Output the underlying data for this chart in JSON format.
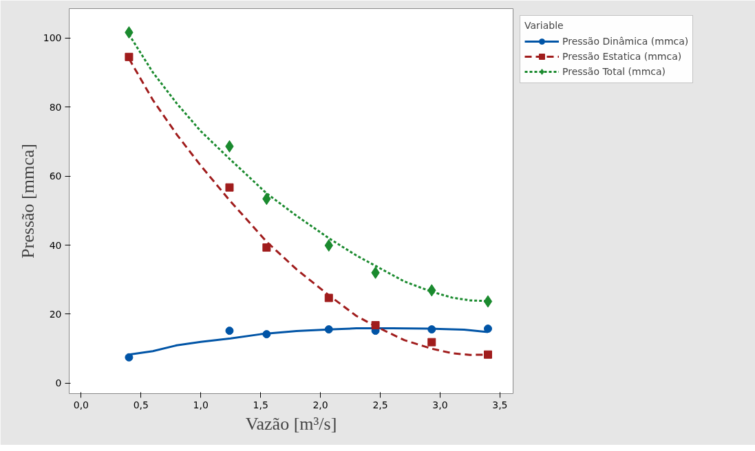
{
  "chart_data": {
    "type": "scatter",
    "xlabel": "Vazão [m³/s]",
    "ylabel": "Pressão [mmca]",
    "legend_title": "Variable",
    "legend": "top right",
    "grid": false,
    "xlim": [
      -0.1,
      3.61
    ],
    "ylim": [
      -3,
      108.5
    ],
    "xticks": [
      {
        "value": 0,
        "label": "0,0"
      },
      {
        "value": 0.5,
        "label": "0,5"
      },
      {
        "value": 1,
        "label": "1,0"
      },
      {
        "value": 1.5,
        "label": "1,5"
      },
      {
        "value": 2,
        "label": "2,0"
      },
      {
        "value": 2.5,
        "label": "2,5"
      },
      {
        "value": 3,
        "label": "3,0"
      },
      {
        "value": 3.5,
        "label": "3,5"
      }
    ],
    "yticks": [
      0,
      20,
      40,
      60,
      80,
      100
    ],
    "x": [
      0.4,
      1.24,
      1.55,
      2.07,
      2.46,
      2.93,
      3.4
    ],
    "series": [
      {
        "name": "Pressão Dinâmica (mmca)",
        "type": "scatter",
        "marker": "circle",
        "color": "#0054a6",
        "values": [
          7.5,
          15.2,
          14.2,
          15.6,
          15.2,
          15.6,
          15.8
        ]
      },
      {
        "type": "line",
        "line_style": "solid",
        "color": "#0054a6",
        "x": [
          0.4,
          0.6,
          0.8,
          1.0,
          1.25,
          1.5,
          1.8,
          2.1,
          2.3,
          2.6,
          2.9,
          3.2,
          3.4
        ],
        "values": [
          8.3,
          9.3,
          11,
          12,
          13,
          14.2,
          15.1,
          15.6,
          15.9,
          15.9,
          15.8,
          15.5,
          14.8
        ]
      },
      {
        "name": "Pressão Estatica (mmca)",
        "type": "scatter",
        "marker": "square",
        "color": "#a01c1c",
        "values": [
          94.5,
          56.7,
          39.3,
          24.7,
          16.8,
          11.9,
          8.3
        ]
      },
      {
        "type": "line",
        "line_style": "dashed",
        "color": "#a01c1c",
        "x": [
          0.4,
          0.6,
          0.8,
          1.0,
          1.24,
          1.55,
          1.8,
          2.07,
          2.3,
          2.46,
          2.7,
          2.93,
          3.1,
          3.25,
          3.4
        ],
        "values": [
          94,
          82,
          72,
          63,
          53,
          41,
          33,
          25.5,
          19.5,
          16.5,
          12.5,
          10,
          8.7,
          8.2,
          8.3
        ]
      },
      {
        "name": "Pressão Total (mmca)",
        "type": "scatter",
        "marker": "diamond",
        "color": "#1a8a2e",
        "values": [
          101.6,
          68.6,
          53.4,
          39.9,
          32.0,
          26.9,
          23.7
        ]
      },
      {
        "type": "line",
        "line_style": "dotted",
        "color": "#1a8a2e",
        "x": [
          0.4,
          0.6,
          0.8,
          1.0,
          1.24,
          1.55,
          1.8,
          2.07,
          2.3,
          2.46,
          2.7,
          2.93,
          3.1,
          3.25,
          3.4
        ],
        "values": [
          101,
          90,
          81,
          73,
          65,
          55,
          48.5,
          42,
          37,
          34,
          29.5,
          26.5,
          24.8,
          24,
          23.8
        ]
      }
    ]
  }
}
